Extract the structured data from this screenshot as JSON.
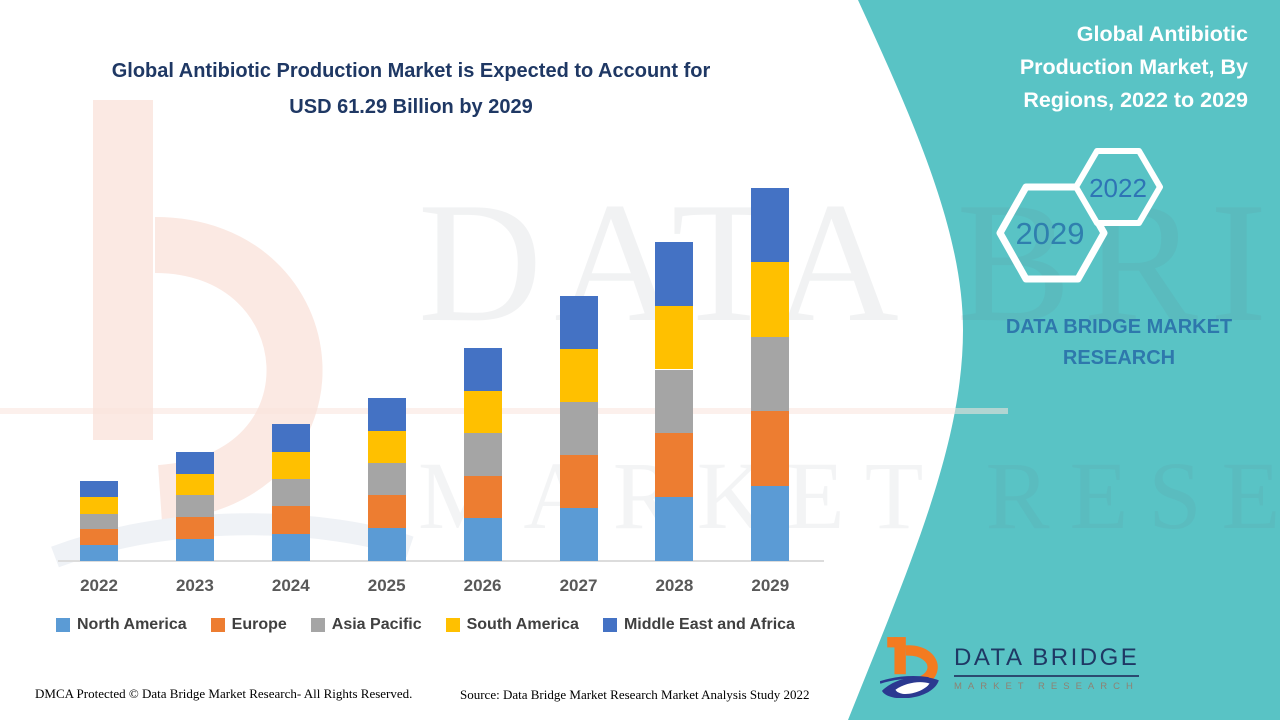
{
  "header": {
    "title_line1": "Global Antibiotic Production Market is Expected to Account for",
    "title_line2": "USD 61.29 Billion by 2029"
  },
  "side_panel": {
    "background_color": "#59C3C5",
    "title": "Global Antibiotic Production Market, By Regions, 2022 to 2029",
    "hex_back_label": "2029",
    "hex_front_label": "2022",
    "brand": "DATA BRIDGE MARKET RESEARCH"
  },
  "chart_data": {
    "type": "bar",
    "stacked": true,
    "title": "Global Antibiotic Production Market is Expected to Account for USD 61.29 Billion by 2029",
    "subtitle": "Global Antibiotic Production Market, By Regions, 2022 to 2029",
    "unit": "USD Billion",
    "xlabel": "",
    "ylabel": "",
    "value_axis_visible": false,
    "grid": false,
    "legend_position": "bottom",
    "ylim": [
      0,
      65
    ],
    "categories": [
      "2022",
      "2023",
      "2024",
      "2025",
      "2026",
      "2027",
      "2028",
      "2029"
    ],
    "series": [
      {
        "name": "North America",
        "color": "#5B9BD5",
        "values": [
          2.6,
          3.6,
          4.5,
          5.4,
          7.0,
          8.7,
          10.5,
          12.3
        ]
      },
      {
        "name": "Europe",
        "color": "#ED7D31",
        "values": [
          2.6,
          3.6,
          4.5,
          5.4,
          7.0,
          8.7,
          10.5,
          12.3
        ]
      },
      {
        "name": "Asia Pacific",
        "color": "#A5A5A5",
        "values": [
          2.6,
          3.6,
          4.5,
          5.3,
          7.0,
          8.7,
          10.5,
          12.2
        ]
      },
      {
        "name": "South America",
        "color": "#FFC000",
        "values": [
          2.7,
          3.5,
          4.5,
          5.3,
          7.0,
          8.7,
          10.4,
          12.3
        ]
      },
      {
        "name": "Middle East and Africa",
        "color": "#4472C4",
        "values": [
          2.7,
          3.6,
          4.5,
          5.4,
          7.0,
          8.8,
          10.5,
          12.19
        ]
      }
    ],
    "totals_estimated": [
      13.2,
      17.9,
      22.5,
      26.8,
      35.0,
      43.6,
      52.4,
      61.29
    ]
  },
  "watermark": {
    "row1": "DATA BRIDGE",
    "row2": "MARKET RESEARCH"
  },
  "logo": {
    "name": "DATA BRIDGE",
    "subtext": "MARKET RESEARCH"
  },
  "footer": {
    "left": "DMCA Protected © Data Bridge Market Research- All Rights Reserved.",
    "right": "Source: Data Bridge Market Research Market Analysis Study 2022"
  }
}
